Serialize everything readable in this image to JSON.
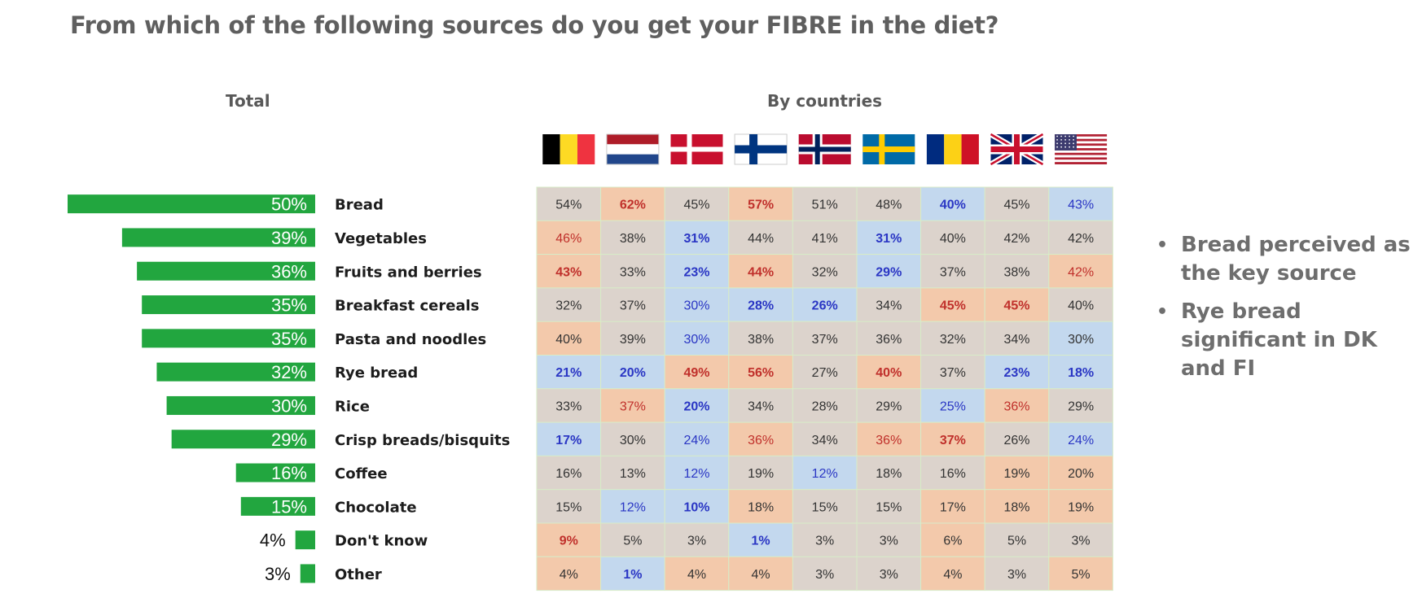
{
  "title": "From which of the following sources do you get your FIBRE in the diet?",
  "total_heading": "Total",
  "countries_heading": "By countries",
  "flags": [
    {
      "country": "Belgium",
      "icon": "belgium-flag-icon"
    },
    {
      "country": "Netherlands",
      "icon": "netherlands-flag-icon"
    },
    {
      "country": "Denmark",
      "icon": "denmark-flag-icon"
    },
    {
      "country": "Finland",
      "icon": "finland-flag-icon"
    },
    {
      "country": "Norway",
      "icon": "norway-flag-icon"
    },
    {
      "country": "Sweden",
      "icon": "sweden-flag-icon"
    },
    {
      "country": "Romania",
      "icon": "romania-flag-icon"
    },
    {
      "country": "United Kingdom",
      "icon": "uk-flag-icon"
    },
    {
      "country": "United States",
      "icon": "usa-flag-icon"
    }
  ],
  "notes": [
    "Bread perceived as the key source",
    "Rye bread significant in DK and FI"
  ],
  "colors": {
    "bar": "#22a63f",
    "high_text": "#c0302b",
    "low_text": "#2a36c4",
    "neutral_text": "#333333",
    "high_fill": "#f3c9ab",
    "mid_fill": "#dcd3cc",
    "low_fill": "#c3d8ee"
  },
  "chart_data": [
    {
      "type": "bar",
      "orientation": "horizontal",
      "categories": [
        "Bread",
        "Vegetables",
        "Fruits and berries",
        "Breakfast cereals",
        "Pasta and noodles",
        "Rye bread",
        "Rice",
        "Crisp breads/bisquits",
        "Coffee",
        "Chocolate",
        "Don't know",
        "Other"
      ],
      "values": [
        50,
        39,
        36,
        35,
        35,
        32,
        30,
        29,
        16,
        15,
        4,
        3
      ],
      "value_labels": [
        "50%",
        "39%",
        "36%",
        "35%",
        "35%",
        "32%",
        "30%",
        "29%",
        "16%",
        "15%",
        "4%",
        "3%"
      ]
    },
    {
      "type": "heatmap",
      "rows": [
        "Bread",
        "Vegetables",
        "Fruits and berries",
        "Breakfast cereals",
        "Pasta and noodles",
        "Rye bread",
        "Rice",
        "Crisp breads/bisquits",
        "Coffee",
        "Chocolate",
        "Don't know",
        "Other"
      ],
      "values": [
        [
          54,
          62,
          45,
          57,
          51,
          48,
          40,
          45,
          43
        ],
        [
          46,
          38,
          31,
          44,
          41,
          31,
          40,
          42,
          42
        ],
        [
          43,
          33,
          23,
          44,
          32,
          29,
          37,
          38,
          42
        ],
        [
          32,
          37,
          30,
          28,
          26,
          34,
          45,
          45,
          40
        ],
        [
          40,
          39,
          30,
          38,
          37,
          36,
          32,
          34,
          30
        ],
        [
          21,
          20,
          49,
          56,
          27,
          40,
          37,
          23,
          18
        ],
        [
          33,
          37,
          20,
          34,
          28,
          29,
          25,
          36,
          29
        ],
        [
          17,
          30,
          24,
          36,
          34,
          36,
          37,
          26,
          24
        ],
        [
          16,
          13,
          12,
          19,
          12,
          18,
          16,
          19,
          20
        ],
        [
          15,
          12,
          10,
          18,
          15,
          15,
          17,
          18,
          19
        ],
        [
          9,
          5,
          3,
          1,
          3,
          3,
          6,
          5,
          3
        ],
        [
          4,
          1,
          4,
          4,
          3,
          3,
          4,
          3,
          5
        ]
      ],
      "labels": [
        [
          "54%",
          "62%",
          "45%",
          "57%",
          "51%",
          "48%",
          "40%",
          "45%",
          "43%"
        ],
        [
          "46%",
          "38%",
          "31%",
          "44%",
          "41%",
          "31%",
          "40%",
          "42%",
          "42%"
        ],
        [
          "43%",
          "33%",
          "23%",
          "44%",
          "32%",
          "29%",
          "37%",
          "38%",
          "42%"
        ],
        [
          "32%",
          "37%",
          "30%",
          "28%",
          "26%",
          "34%",
          "45%",
          "45%",
          "40%"
        ],
        [
          "40%",
          "39%",
          "30%",
          "38%",
          "37%",
          "36%",
          "32%",
          "34%",
          "30%"
        ],
        [
          "21%",
          "20%",
          "49%",
          "56%",
          "27%",
          "40%",
          "37%",
          "23%",
          "18%"
        ],
        [
          "33%",
          "37%",
          "20%",
          "34%",
          "28%",
          "29%",
          "25%",
          "36%",
          "29%"
        ],
        [
          "17%",
          "30%",
          "24%",
          "36%",
          "34%",
          "36%",
          "37%",
          "26%",
          "24%"
        ],
        [
          "16%",
          "13%",
          "12%",
          "19%",
          "12%",
          "18%",
          "16%",
          "19%",
          "20%"
        ],
        [
          "15%",
          "12%",
          "10%",
          "18%",
          "15%",
          "15%",
          "17%",
          "18%",
          "19%"
        ],
        [
          "9%",
          "5%",
          "3%",
          "1%",
          "3%",
          "3%",
          "6%",
          "5%",
          "3%"
        ],
        [
          "4%",
          "1%",
          "4%",
          "4%",
          "3%",
          "3%",
          "4%",
          "3%",
          "5%"
        ]
      ],
      "fill_levels": [
        [
          "mid",
          "high",
          "mid",
          "high",
          "mid",
          "mid",
          "low",
          "mid",
          "low"
        ],
        [
          "high",
          "mid",
          "low",
          "mid",
          "mid",
          "low",
          "mid",
          "mid",
          "mid"
        ],
        [
          "high",
          "mid",
          "low",
          "high",
          "mid",
          "low",
          "mid",
          "mid",
          "high"
        ],
        [
          "mid",
          "mid",
          "low",
          "low",
          "low",
          "mid",
          "high",
          "high",
          "mid"
        ],
        [
          "high",
          "mid",
          "low",
          "mid",
          "mid",
          "mid",
          "mid",
          "mid",
          "low"
        ],
        [
          "low",
          "low",
          "high",
          "high",
          "mid",
          "high",
          "mid",
          "low",
          "low"
        ],
        [
          "mid",
          "high",
          "low",
          "mid",
          "mid",
          "mid",
          "low",
          "high",
          "mid"
        ],
        [
          "low",
          "mid",
          "low",
          "high",
          "mid",
          "high",
          "high",
          "mid",
          "low"
        ],
        [
          "mid",
          "mid",
          "low",
          "mid",
          "low",
          "mid",
          "mid",
          "high",
          "high"
        ],
        [
          "mid",
          "low",
          "low",
          "high",
          "mid",
          "mid",
          "high",
          "high",
          "high"
        ],
        [
          "high",
          "mid",
          "mid",
          "low",
          "mid",
          "mid",
          "high",
          "mid",
          "mid"
        ],
        [
          "high",
          "low",
          "high",
          "high",
          "mid",
          "mid",
          "high",
          "mid",
          "high"
        ]
      ],
      "text_emphasis": [
        [
          "n",
          "H",
          "n",
          "H",
          "n",
          "n",
          "L",
          "n",
          "l"
        ],
        [
          "h",
          "n",
          "L",
          "n",
          "n",
          "L",
          "n",
          "n",
          "n"
        ],
        [
          "H",
          "n",
          "L",
          "H",
          "n",
          "L",
          "n",
          "n",
          "h"
        ],
        [
          "n",
          "n",
          "l",
          "L",
          "L",
          "n",
          "H",
          "H",
          "n"
        ],
        [
          "n",
          "n",
          "l",
          "n",
          "n",
          "n",
          "n",
          "n",
          "n"
        ],
        [
          "L",
          "L",
          "H",
          "H",
          "n",
          "H",
          "n",
          "L",
          "L"
        ],
        [
          "n",
          "h",
          "L",
          "n",
          "n",
          "n",
          "l",
          "h",
          "n"
        ],
        [
          "L",
          "n",
          "l",
          "h",
          "n",
          "h",
          "H",
          "n",
          "l"
        ],
        [
          "n",
          "n",
          "l",
          "n",
          "l",
          "n",
          "n",
          "n",
          "n"
        ],
        [
          "n",
          "l",
          "L",
          "n",
          "n",
          "n",
          "n",
          "n",
          "n"
        ],
        [
          "H",
          "n",
          "n",
          "L",
          "n",
          "n",
          "n",
          "n",
          "n"
        ],
        [
          "n",
          "L",
          "n",
          "n",
          "n",
          "n",
          "n",
          "n",
          "n"
        ]
      ]
    }
  ]
}
